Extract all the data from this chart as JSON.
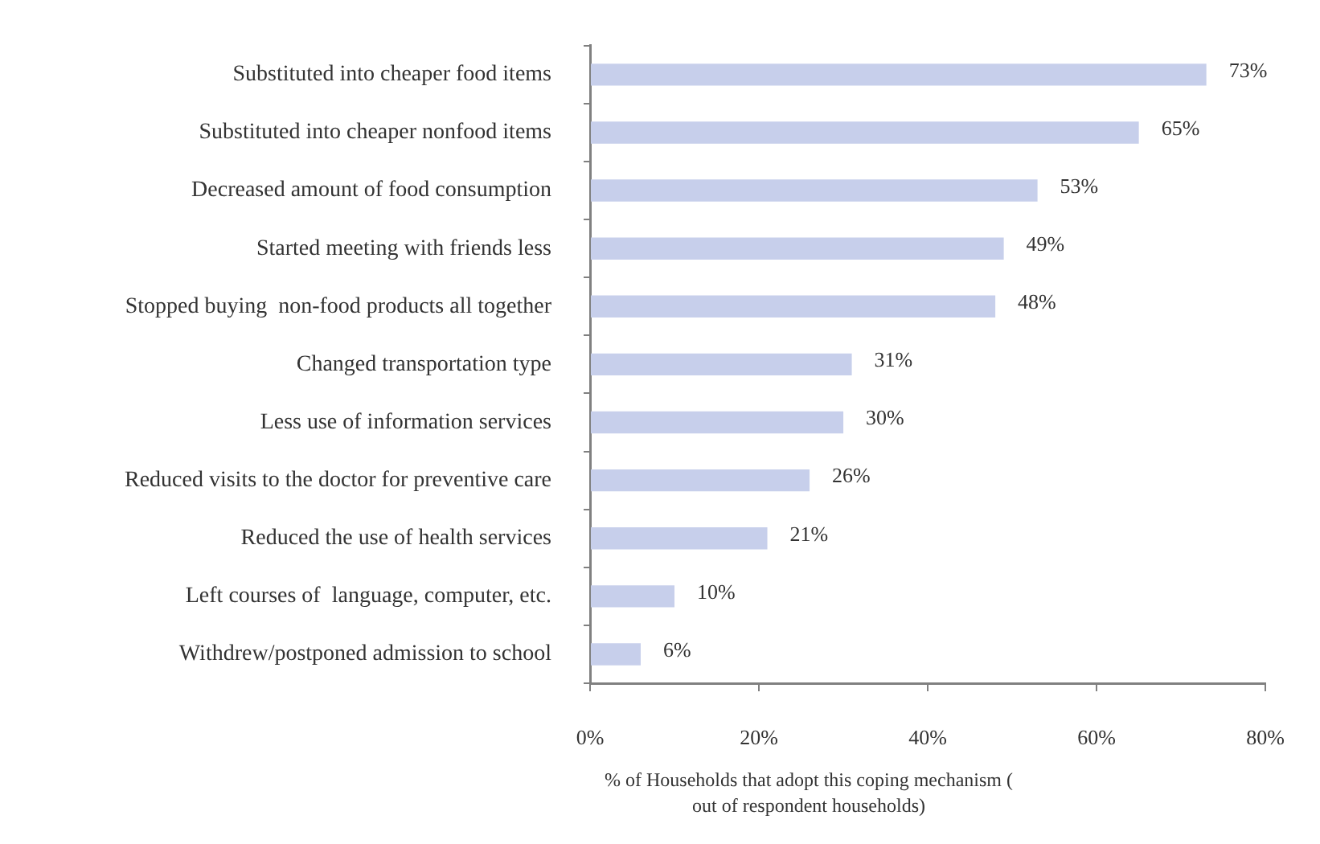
{
  "chart_data": {
    "type": "bar",
    "orientation": "horizontal",
    "xlabel": "% of Households that adopt this coping mechanism ( out of respondent households)",
    "categories": [
      "Substituted into cheaper food items",
      "Substituted into cheaper nonfood items",
      "Decreased amount of food consumption",
      "Started meeting with friends less",
      "Stopped buying  non-food products all together",
      "Changed transportation type",
      "Less use of information services",
      "Reduced visits to the doctor for preventive care",
      "Reduced the use of health services",
      "Left courses of  language, computer, etc.",
      "Withdrew/postponed admission to school"
    ],
    "values": [
      73,
      65,
      53,
      49,
      48,
      31,
      30,
      26,
      21,
      10,
      6
    ],
    "value_labels": [
      "73%",
      "65%",
      "53%",
      "49%",
      "48%",
      "31%",
      "30%",
      "26%",
      "21%",
      "10%",
      "6%"
    ],
    "color": "#c7cfeb",
    "xlim": [
      0,
      80
    ],
    "xticks": [
      {
        "value": 0,
        "label": "0%"
      },
      {
        "value": 20,
        "label": "20%"
      },
      {
        "value": 40,
        "label": "40%"
      },
      {
        "value": 60,
        "label": "60%"
      },
      {
        "value": 80,
        "label": "80%"
      }
    ],
    "legend": false
  }
}
